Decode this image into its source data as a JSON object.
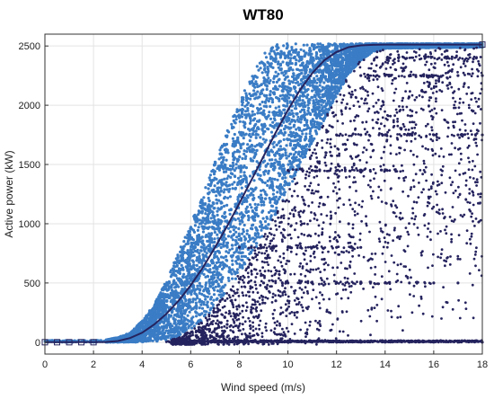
{
  "chart_data": {
    "type": "scatter",
    "title": "WT80",
    "xlabel": "Wind speed (m/s)",
    "ylabel": "Active power (kW)",
    "xlim": [
      0,
      18
    ],
    "ylim": [
      -100,
      2600
    ],
    "xticks": [
      0,
      2,
      4,
      6,
      8,
      10,
      12,
      14,
      16,
      18
    ],
    "yticks": [
      0,
      500,
      1000,
      1500,
      2000,
      2500
    ],
    "grid": true,
    "legend": "none",
    "colors": {
      "normal_points": "#3a7cc5",
      "anomaly_points": "#25235e",
      "power_curve": "#25235e",
      "grid": "#e3e3e3"
    },
    "series": [
      {
        "kind": "scatter-band",
        "color": "#3a7cc5",
        "band": [
          {
            "x": 2.5,
            "y_min": 0,
            "y_max": 20
          },
          {
            "x": 3.0,
            "y_min": 0,
            "y_max": 40
          },
          {
            "x": 3.5,
            "y_min": 0,
            "y_max": 80
          },
          {
            "x": 4.0,
            "y_min": 0,
            "y_max": 180
          },
          {
            "x": 4.5,
            "y_min": 0,
            "y_max": 320
          },
          {
            "x": 5.0,
            "y_min": 10,
            "y_max": 520
          },
          {
            "x": 5.5,
            "y_min": 40,
            "y_max": 760
          },
          {
            "x": 6.0,
            "y_min": 100,
            "y_max": 1000
          },
          {
            "x": 6.5,
            "y_min": 180,
            "y_max": 1250
          },
          {
            "x": 7.0,
            "y_min": 300,
            "y_max": 1520
          },
          {
            "x": 7.5,
            "y_min": 430,
            "y_max": 1780
          },
          {
            "x": 8.0,
            "y_min": 580,
            "y_max": 2030
          },
          {
            "x": 8.5,
            "y_min": 740,
            "y_max": 2250
          },
          {
            "x": 9.0,
            "y_min": 900,
            "y_max": 2450
          },
          {
            "x": 9.5,
            "y_min": 1080,
            "y_max": 2520
          },
          {
            "x": 10.0,
            "y_min": 1280,
            "y_max": 2520
          },
          {
            "x": 10.5,
            "y_min": 1480,
            "y_max": 2520
          },
          {
            "x": 11.0,
            "y_min": 1680,
            "y_max": 2520
          },
          {
            "x": 11.5,
            "y_min": 1880,
            "y_max": 2520
          },
          {
            "x": 12.0,
            "y_min": 2080,
            "y_max": 2520
          },
          {
            "x": 12.5,
            "y_min": 2260,
            "y_max": 2520
          },
          {
            "x": 13.0,
            "y_min": 2380,
            "y_max": 2520
          },
          {
            "x": 13.5,
            "y_min": 2450,
            "y_max": 2520
          },
          {
            "x": 14.0,
            "y_min": 2480,
            "y_max": 2520
          },
          {
            "x": 18.0,
            "y_min": 2490,
            "y_max": 2520
          }
        ]
      },
      {
        "kind": "line",
        "color": "#25235e",
        "x": [
          0,
          2.5,
          3,
          3.5,
          4,
          4.5,
          5,
          5.5,
          6,
          6.5,
          7,
          7.5,
          8,
          8.5,
          9,
          9.5,
          10,
          10.5,
          11,
          11.5,
          12,
          12.5,
          13,
          13.5,
          14,
          15,
          16,
          17,
          18
        ],
        "y": [
          0,
          2,
          10,
          35,
          80,
          150,
          240,
          350,
          480,
          630,
          800,
          980,
          1170,
          1370,
          1570,
          1770,
          1960,
          2130,
          2270,
          2380,
          2450,
          2490,
          2505,
          2510,
          2512,
          2512,
          2512,
          2512,
          2512
        ]
      },
      {
        "kind": "scatter",
        "color": "#25235e",
        "x": [
          5.2,
          6,
          7,
          8,
          9,
          10,
          11,
          12,
          13,
          14,
          15,
          16,
          17,
          18,
          8,
          8.5,
          9,
          10,
          11,
          12,
          13,
          9,
          10,
          11,
          12,
          13,
          14,
          15,
          16,
          17,
          10,
          11,
          12,
          13,
          14,
          12,
          13,
          14,
          15,
          16,
          17,
          18,
          13,
          14,
          15,
          16,
          17,
          18,
          6.5,
          7.5,
          8.5,
          9.5,
          10.5,
          11.5,
          12.5
        ],
        "y": [
          0,
          0,
          0,
          0,
          0,
          0,
          0,
          0,
          0,
          0,
          0,
          0,
          0,
          0,
          800,
          800,
          800,
          800,
          800,
          800,
          800,
          500,
          500,
          500,
          500,
          500,
          500,
          500,
          500,
          500,
          1450,
          1450,
          1450,
          1450,
          1450,
          1750,
          1750,
          1750,
          1750,
          1750,
          1750,
          1750,
          2250,
          2250,
          2250,
          2250,
          2250,
          2250,
          50,
          150,
          250,
          350,
          500,
          700,
          1000
        ]
      }
    ]
  }
}
